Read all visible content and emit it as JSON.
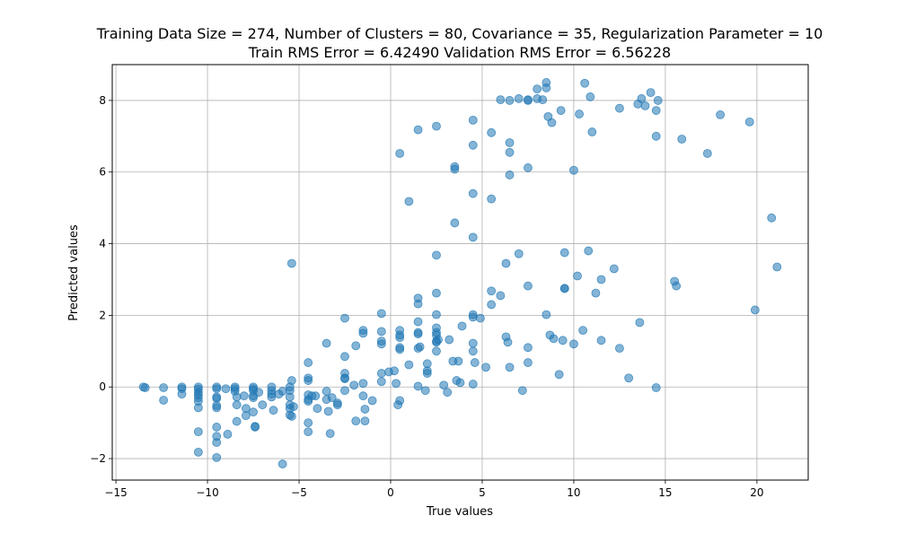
{
  "chart_data": {
    "type": "scatter",
    "title_line1": "Training Data Size = 274, Number of Clusters = 80, Covariance = 35, Regularization Parameter = 10",
    "title_line2": "Train RMS Error = 6.42490 Validation RMS Error = 6.56228",
    "xlabel": "True values",
    "ylabel": "Predicted values",
    "xlim": [
      -15.2,
      22.8
    ],
    "ylim": [
      -2.6,
      9.0
    ],
    "xticks": [
      -15,
      -10,
      -5,
      0,
      5,
      10,
      15,
      20
    ],
    "yticks": [
      -2,
      0,
      2,
      4,
      6,
      8
    ],
    "grid": true,
    "marker_color": "#1f77b4",
    "marker_alpha": 0.55,
    "points": [
      [
        -13.5,
        0.0
      ],
      [
        -13.4,
        -0.02
      ],
      [
        -12.4,
        -0.02
      ],
      [
        -12.4,
        -0.37
      ],
      [
        -11.4,
        0.0
      ],
      [
        -11.4,
        -0.05
      ],
      [
        -11.4,
        -0.2
      ],
      [
        -10.5,
        0.0
      ],
      [
        -10.5,
        -0.06
      ],
      [
        -10.5,
        -0.15
      ],
      [
        -10.5,
        -0.22
      ],
      [
        -10.5,
        -0.3
      ],
      [
        -10.5,
        -0.4
      ],
      [
        -10.5,
        -0.58
      ],
      [
        -10.5,
        -1.25
      ],
      [
        -10.5,
        -1.82
      ],
      [
        -9.5,
        0.0
      ],
      [
        -9.5,
        -0.05
      ],
      [
        -9.5,
        -0.28
      ],
      [
        -9.5,
        -0.32
      ],
      [
        -9.5,
        -0.52
      ],
      [
        -9.5,
        -0.58
      ],
      [
        -9.5,
        -1.12
      ],
      [
        -9.5,
        -1.38
      ],
      [
        -9.5,
        -1.55
      ],
      [
        -9.5,
        -1.97
      ],
      [
        -9.0,
        -0.05
      ],
      [
        -8.9,
        -1.32
      ],
      [
        -8.5,
        0.0
      ],
      [
        -8.5,
        -0.05
      ],
      [
        -8.5,
        -0.12
      ],
      [
        -8.4,
        -0.28
      ],
      [
        -8.4,
        -0.5
      ],
      [
        -8.4,
        -0.96
      ],
      [
        -8.0,
        -0.25
      ],
      [
        -7.9,
        -0.6
      ],
      [
        -7.9,
        -0.8
      ],
      [
        -7.5,
        0.0
      ],
      [
        -7.5,
        -0.05
      ],
      [
        -7.5,
        -0.1
      ],
      [
        -7.5,
        -0.25
      ],
      [
        -7.5,
        -0.3
      ],
      [
        -7.5,
        -0.7
      ],
      [
        -7.4,
        -1.1
      ],
      [
        -7.4,
        -1.12
      ],
      [
        -7.2,
        -0.15
      ],
      [
        -7.0,
        -0.5
      ],
      [
        -6.5,
        0.0
      ],
      [
        -6.5,
        -0.1
      ],
      [
        -6.5,
        -0.2
      ],
      [
        -6.5,
        -0.28
      ],
      [
        -6.4,
        -0.65
      ],
      [
        -6.1,
        -0.2
      ],
      [
        -5.9,
        -2.15
      ],
      [
        -5.9,
        -0.12
      ],
      [
        -5.5,
        0.0
      ],
      [
        -5.5,
        -0.1
      ],
      [
        -5.5,
        -0.28
      ],
      [
        -5.5,
        -0.5
      ],
      [
        -5.5,
        -0.6
      ],
      [
        -5.5,
        -0.78
      ],
      [
        -5.4,
        -0.82
      ],
      [
        -5.4,
        0.18
      ],
      [
        -5.4,
        3.45
      ],
      [
        -5.3,
        -0.55
      ],
      [
        -4.5,
        0.68
      ],
      [
        -4.5,
        0.25
      ],
      [
        -4.5,
        0.18
      ],
      [
        -4.5,
        -0.22
      ],
      [
        -4.5,
        -0.35
      ],
      [
        -4.5,
        -0.4
      ],
      [
        -4.5,
        -1.0
      ],
      [
        -4.5,
        -1.25
      ],
      [
        -4.3,
        -0.25
      ],
      [
        -4.1,
        -0.25
      ],
      [
        -4.0,
        -0.6
      ],
      [
        -3.5,
        1.22
      ],
      [
        -3.5,
        -0.12
      ],
      [
        -3.5,
        -0.35
      ],
      [
        -3.4,
        -0.68
      ],
      [
        -3.3,
        -1.3
      ],
      [
        -3.2,
        -0.3
      ],
      [
        -2.9,
        -0.45
      ],
      [
        -2.9,
        -0.5
      ],
      [
        -2.5,
        1.92
      ],
      [
        -2.5,
        0.85
      ],
      [
        -2.5,
        0.38
      ],
      [
        -2.5,
        0.25
      ],
      [
        -2.5,
        0.23
      ],
      [
        -2.5,
        -0.1
      ],
      [
        -2.0,
        0.05
      ],
      [
        -1.9,
        1.15
      ],
      [
        -1.9,
        -0.95
      ],
      [
        -1.5,
        1.58
      ],
      [
        -1.5,
        1.5
      ],
      [
        -1.5,
        0.1
      ],
      [
        -1.5,
        -0.25
      ],
      [
        -1.4,
        -0.62
      ],
      [
        -1.4,
        -0.95
      ],
      [
        -1.0,
        -0.38
      ],
      [
        -0.5,
        2.05
      ],
      [
        -0.5,
        1.55
      ],
      [
        -0.5,
        1.28
      ],
      [
        -0.5,
        1.2
      ],
      [
        -0.5,
        0.38
      ],
      [
        -0.5,
        0.15
      ],
      [
        -0.1,
        0.42
      ],
      [
        0.2,
        0.45
      ],
      [
        0.3,
        0.1
      ],
      [
        0.4,
        -0.5
      ],
      [
        0.5,
        6.52
      ],
      [
        0.5,
        1.58
      ],
      [
        0.5,
        1.45
      ],
      [
        0.5,
        1.38
      ],
      [
        0.5,
        1.1
      ],
      [
        0.5,
        1.05
      ],
      [
        0.5,
        -0.38
      ],
      [
        1.0,
        5.18
      ],
      [
        1.0,
        0.62
      ],
      [
        1.5,
        7.18
      ],
      [
        1.5,
        2.48
      ],
      [
        1.5,
        2.32
      ],
      [
        1.5,
        1.82
      ],
      [
        1.5,
        1.52
      ],
      [
        1.5,
        1.48
      ],
      [
        1.5,
        1.08
      ],
      [
        1.5,
        0.02
      ],
      [
        1.6,
        1.12
      ],
      [
        1.9,
        -0.1
      ],
      [
        2.0,
        0.65
      ],
      [
        2.0,
        0.45
      ],
      [
        2.0,
        0.38
      ],
      [
        2.5,
        7.28
      ],
      [
        2.5,
        3.68
      ],
      [
        2.5,
        2.62
      ],
      [
        2.5,
        2.02
      ],
      [
        2.5,
        1.65
      ],
      [
        2.5,
        1.52
      ],
      [
        2.5,
        1.45
      ],
      [
        2.5,
        1.28
      ],
      [
        2.5,
        1.25
      ],
      [
        2.5,
        1.0
      ],
      [
        2.6,
        1.32
      ],
      [
        2.9,
        0.05
      ],
      [
        3.1,
        -0.15
      ],
      [
        3.2,
        1.32
      ],
      [
        3.4,
        0.72
      ],
      [
        3.5,
        6.15
      ],
      [
        3.5,
        6.08
      ],
      [
        3.5,
        4.58
      ],
      [
        3.6,
        0.18
      ],
      [
        3.7,
        0.72
      ],
      [
        3.8,
        0.12
      ],
      [
        3.9,
        1.7
      ],
      [
        4.5,
        7.45
      ],
      [
        4.5,
        6.75
      ],
      [
        4.5,
        5.4
      ],
      [
        4.5,
        4.18
      ],
      [
        4.5,
        2.02
      ],
      [
        4.5,
        1.95
      ],
      [
        4.5,
        1.22
      ],
      [
        4.5,
        1.0
      ],
      [
        4.5,
        0.08
      ],
      [
        4.6,
        0.68
      ],
      [
        4.9,
        1.92
      ],
      [
        5.2,
        0.55
      ],
      [
        5.5,
        7.1
      ],
      [
        5.5,
        5.25
      ],
      [
        5.5,
        2.68
      ],
      [
        5.5,
        2.3
      ],
      [
        6.0,
        8.02
      ],
      [
        6.0,
        2.55
      ],
      [
        6.3,
        3.45
      ],
      [
        6.3,
        1.4
      ],
      [
        6.4,
        1.25
      ],
      [
        6.5,
        8.0
      ],
      [
        6.5,
        6.82
      ],
      [
        6.5,
        6.55
      ],
      [
        6.5,
        5.92
      ],
      [
        6.5,
        0.55
      ],
      [
        7.0,
        8.05
      ],
      [
        7.0,
        3.72
      ],
      [
        7.2,
        -0.1
      ],
      [
        7.5,
        8.02
      ],
      [
        7.5,
        8.0
      ],
      [
        7.5,
        6.12
      ],
      [
        7.5,
        2.82
      ],
      [
        7.5,
        1.1
      ],
      [
        7.5,
        0.68
      ],
      [
        8.0,
        8.32
      ],
      [
        8.0,
        8.05
      ],
      [
        8.3,
        8.02
      ],
      [
        8.5,
        8.5
      ],
      [
        8.5,
        8.35
      ],
      [
        8.5,
        2.02
      ],
      [
        8.6,
        7.55
      ],
      [
        8.7,
        1.45
      ],
      [
        8.8,
        7.38
      ],
      [
        8.9,
        1.35
      ],
      [
        9.2,
        0.35
      ],
      [
        9.3,
        7.72
      ],
      [
        9.4,
        1.3
      ],
      [
        9.5,
        3.75
      ],
      [
        9.5,
        2.75
      ],
      [
        9.5,
        2.75
      ],
      [
        10.0,
        6.05
      ],
      [
        10.0,
        1.2
      ],
      [
        10.2,
        3.1
      ],
      [
        10.3,
        7.62
      ],
      [
        10.5,
        1.58
      ],
      [
        10.6,
        8.48
      ],
      [
        10.8,
        3.8
      ],
      [
        10.9,
        8.1
      ],
      [
        11.0,
        7.12
      ],
      [
        11.2,
        2.62
      ],
      [
        11.5,
        3.0
      ],
      [
        11.5,
        1.3
      ],
      [
        12.2,
        3.3
      ],
      [
        12.5,
        7.78
      ],
      [
        12.5,
        1.08
      ],
      [
        13.0,
        0.25
      ],
      [
        13.5,
        7.9
      ],
      [
        13.6,
        1.8
      ],
      [
        13.7,
        8.05
      ],
      [
        13.9,
        7.85
      ],
      [
        14.2,
        8.22
      ],
      [
        14.5,
        7.72
      ],
      [
        14.5,
        7.0
      ],
      [
        14.5,
        -0.02
      ],
      [
        14.6,
        8.0
      ],
      [
        15.5,
        2.95
      ],
      [
        15.6,
        2.82
      ],
      [
        15.9,
        6.92
      ],
      [
        17.3,
        6.52
      ],
      [
        18.0,
        7.6
      ],
      [
        19.6,
        7.4
      ],
      [
        19.9,
        2.15
      ],
      [
        20.8,
        4.72
      ],
      [
        21.1,
        3.35
      ]
    ]
  }
}
